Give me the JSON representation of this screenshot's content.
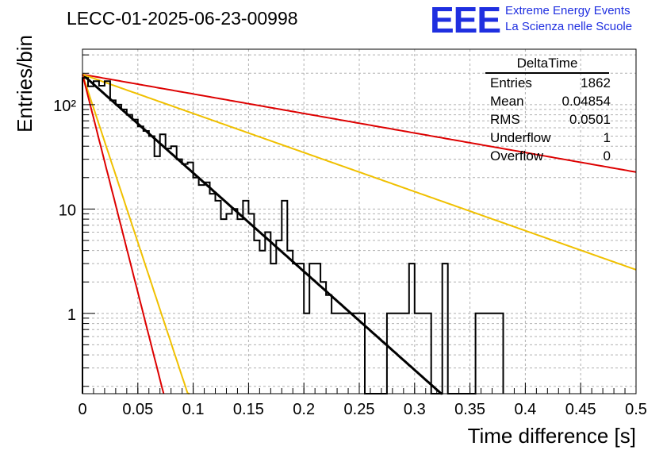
{
  "title": "LECC-01-2025-06-23-00998",
  "logo": {
    "text": "EEE",
    "line1": "Extreme Energy Events",
    "line2": "La Scienza nelle Scuole",
    "color": "#1f2fe0"
  },
  "stats": {
    "name": "DeltaTime",
    "rows": [
      {
        "label": "Entries",
        "value": "1862"
      },
      {
        "label": "Mean",
        "value": "0.04854"
      },
      {
        "label": "RMS",
        "value": "0.0501"
      },
      {
        "label": "Underflow",
        "value": "1"
      },
      {
        "label": "Overflow",
        "value": "0"
      }
    ]
  },
  "chart_data": {
    "type": "line",
    "xlabel": "Time difference [s]",
    "ylabel": "Entries/bin",
    "xlim": [
      0,
      0.5
    ],
    "ylim": [
      0.17,
      340
    ],
    "yscale": "log",
    "grid": true,
    "xticks": [
      "0",
      "0.05",
      "0.1",
      "0.15",
      "0.2",
      "0.25",
      "0.3",
      "0.35",
      "0.4",
      "0.45",
      "0.5"
    ],
    "yticks": [
      {
        "value": 1,
        "label": "1"
      },
      {
        "value": 10,
        "label": "10"
      },
      {
        "value": 100,
        "label": "10²"
      }
    ],
    "histogram": {
      "bin_width": 0.005,
      "color": "#000000",
      "values": [
        180,
        150,
        168,
        152,
        168,
        110,
        100,
        90,
        80,
        72,
        62,
        56,
        50,
        32,
        52,
        38,
        40,
        30,
        27,
        28,
        20,
        17,
        18,
        14,
        12,
        8,
        9,
        10,
        8,
        12,
        9,
        5,
        4,
        6,
        3,
        5,
        12,
        4,
        3,
        3,
        1,
        3,
        3,
        2,
        1.5,
        1,
        1,
        1,
        1,
        1,
        1,
        0.15,
        0.15,
        0.15,
        0.15,
        1,
        1,
        1,
        1,
        3,
        1,
        1,
        1,
        0.15,
        0.15,
        3,
        0.15,
        0.15,
        0.15,
        0.15,
        0.15,
        1,
        1,
        1,
        1,
        1
      ]
    },
    "series": [
      {
        "kind": "fit",
        "color": "#000000",
        "x0": 0.0,
        "y0": 195,
        "tau": 0.046,
        "x_end": 0.335
      },
      {
        "kind": "bound",
        "color": "#dd0000",
        "x0": 0.0,
        "y0": 195,
        "tau": 0.232,
        "x_end": 0.5
      },
      {
        "kind": "bound",
        "color": "#f0c000",
        "x0": 0.0,
        "y0": 195,
        "tau": 0.116,
        "x_end": 0.5
      },
      {
        "kind": "bound",
        "color": "#f0c000",
        "x0": 0.0,
        "y0": 195,
        "tau": 0.0135,
        "x_end": 0.5
      },
      {
        "kind": "bound",
        "color": "#dd0000",
        "x0": 0.0,
        "y0": 195,
        "tau": 0.0104,
        "x_end": 0.5
      }
    ]
  }
}
